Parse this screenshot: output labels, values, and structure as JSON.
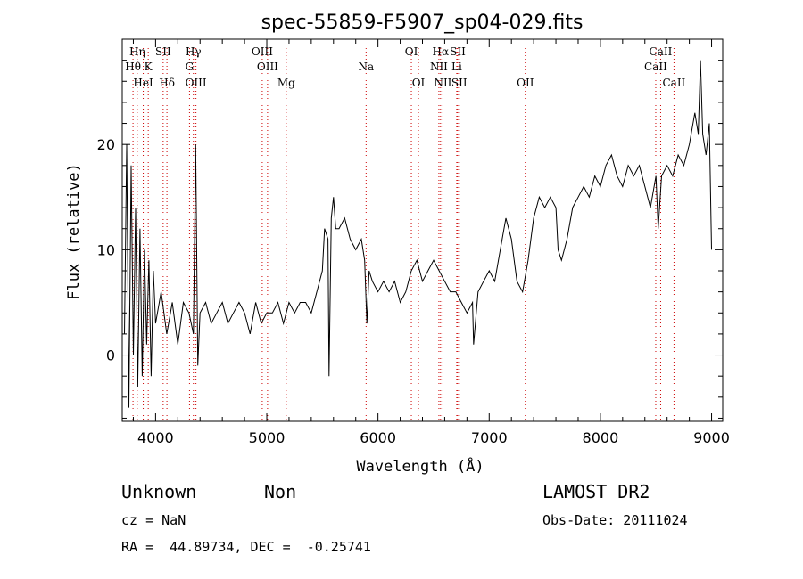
{
  "chart_data": {
    "type": "line",
    "title": "spec-55859-F5907_sp04-029.fits",
    "xlabel": "Wavelength (Å)",
    "ylabel": "Flux (relative)",
    "xlim": [
      3700,
      9100
    ],
    "ylim": [
      -6.3,
      30
    ],
    "xticks": [
      4000,
      5000,
      6000,
      7000,
      8000,
      9000
    ],
    "yticks": [
      0,
      10,
      20
    ],
    "series": [
      {
        "values_description": "spectrum flux",
        "x": [
          3720,
          3740,
          3760,
          3780,
          3800,
          3820,
          3840,
          3860,
          3880,
          3900,
          3920,
          3940,
          3960,
          3980,
          4000,
          4050,
          4100,
          4150,
          4200,
          4250,
          4300,
          4340,
          4360,
          4380,
          4400,
          4450,
          4500,
          4550,
          4600,
          4650,
          4700,
          4750,
          4800,
          4850,
          4900,
          4950,
          5000,
          5050,
          5100,
          5150,
          5200,
          5250,
          5300,
          5350,
          5400,
          5450,
          5500,
          5520,
          5550,
          5560,
          5580,
          5600,
          5620,
          5650,
          5700,
          5750,
          5800,
          5850,
          5880,
          5900,
          5920,
          5950,
          6000,
          6050,
          6100,
          6150,
          6200,
          6250,
          6300,
          6350,
          6400,
          6450,
          6500,
          6550,
          6600,
          6650,
          6700,
          6750,
          6800,
          6850,
          6860,
          6900,
          6950,
          7000,
          7050,
          7100,
          7150,
          7200,
          7250,
          7300,
          7350,
          7400,
          7450,
          7500,
          7550,
          7600,
          7620,
          7650,
          7700,
          7750,
          7800,
          7850,
          7900,
          7950,
          8000,
          8050,
          8100,
          8150,
          8200,
          8250,
          8300,
          8350,
          8400,
          8450,
          8500,
          8520,
          8550,
          8600,
          8650,
          8700,
          8750,
          8800,
          8850,
          8880,
          8900,
          8920,
          8950,
          8980,
          9000
        ],
        "y": [
          2,
          20,
          -5,
          18,
          0,
          14,
          -3,
          12,
          -2,
          10,
          1,
          9,
          -2,
          8,
          3,
          6,
          2,
          5,
          1,
          5,
          4,
          2,
          20,
          -1,
          4,
          5,
          3,
          4,
          5,
          3,
          4,
          5,
          4,
          2,
          5,
          3,
          4,
          4,
          5,
          3,
          5,
          4,
          5,
          5,
          4,
          6,
          8,
          12,
          11,
          -2,
          13,
          15,
          12,
          12,
          13,
          11,
          10,
          11,
          9,
          3,
          8,
          7,
          6,
          7,
          6,
          7,
          5,
          6,
          8,
          9,
          7,
          8,
          9,
          8,
          7,
          6,
          6,
          5,
          4,
          5,
          1,
          6,
          7,
          8,
          7,
          10,
          13,
          11,
          7,
          6,
          9,
          13,
          15,
          14,
          15,
          14,
          10,
          9,
          11,
          14,
          15,
          16,
          15,
          17,
          16,
          18,
          19,
          17,
          16,
          18,
          17,
          18,
          16,
          14,
          17,
          12,
          17,
          18,
          17,
          19,
          18,
          20,
          23,
          21,
          28,
          21,
          19,
          22,
          10
        ]
      }
    ],
    "line_markers": [
      {
        "name": "Hη",
        "x": 3835,
        "row": 0
      },
      {
        "name": "SII",
        "x": 4068,
        "row": 0
      },
      {
        "name": "Hγ",
        "x": 4340,
        "row": 0
      },
      {
        "name": "OIII",
        "x": 4959,
        "row": 0
      },
      {
        "name": "OI",
        "x": 6300,
        "row": 0
      },
      {
        "name": "Hα",
        "x": 6563,
        "row": 0
      },
      {
        "name": "SII",
        "x": 6717,
        "row": 0
      },
      {
        "name": "CaII",
        "x": 8542,
        "row": 0
      },
      {
        "name": "Hθ",
        "x": 3797,
        "row": 1
      },
      {
        "name": "K",
        "x": 3934,
        "row": 1
      },
      {
        "name": "G",
        "x": 4305,
        "row": 1
      },
      {
        "name": "OIII",
        "x": 5007,
        "row": 1
      },
      {
        "name": "Na",
        "x": 5893,
        "row": 1
      },
      {
        "name": "NII",
        "x": 6548,
        "row": 1
      },
      {
        "name": "Li",
        "x": 6708,
        "row": 1
      },
      {
        "name": "CaII",
        "x": 8498,
        "row": 1
      },
      {
        "name": "HeI",
        "x": 3889,
        "row": 2
      },
      {
        "name": "Hδ",
        "x": 4102,
        "row": 2
      },
      {
        "name": "OIII",
        "x": 4363,
        "row": 2
      },
      {
        "name": "Mg",
        "x": 5175,
        "row": 2
      },
      {
        "name": "OI",
        "x": 6364,
        "row": 2
      },
      {
        "name": "NII",
        "x": 6584,
        "row": 2
      },
      {
        "name": "SII",
        "x": 6731,
        "row": 2
      },
      {
        "name": "OII",
        "x": 7325,
        "row": 2
      },
      {
        "name": "CaII",
        "x": 8662,
        "row": 2
      }
    ]
  },
  "info": {
    "classification": "Unknown",
    "subclass": "Non",
    "survey": "LAMOST DR2",
    "redshift": "cz = NaN",
    "obs_date": "Obs-Date: 20111024",
    "coords": "RA =  44.89734, DEC =  -0.25741"
  }
}
